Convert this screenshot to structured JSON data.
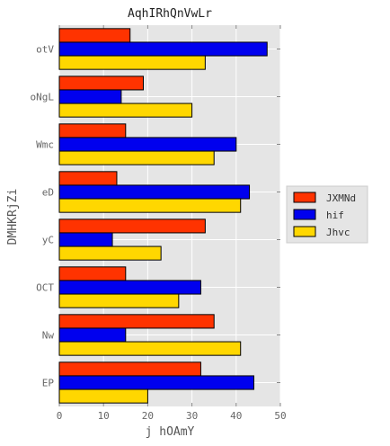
{
  "chart_data": {
    "type": "bar",
    "orientation": "horizontal",
    "title": "AqhIRhQnVwLr",
    "xlabel": "j hOAmY",
    "ylabel": "DMHKRjZi",
    "categories": [
      "otV",
      "oNgL",
      "Wmc",
      "eD",
      "yC",
      "OCT",
      "Nw",
      "EP"
    ],
    "series": [
      {
        "name": "JXMNd",
        "color": "#ff3300",
        "values": [
          16,
          19,
          15,
          13,
          33,
          15,
          35,
          32
        ]
      },
      {
        "name": "hif",
        "color": "#0000ee",
        "values": [
          47,
          14,
          40,
          43,
          12,
          32,
          15,
          44
        ]
      },
      {
        "name": "Jhvc",
        "color": "#ffd700",
        "values": [
          33,
          30,
          35,
          41,
          23,
          27,
          41,
          20
        ]
      }
    ],
    "xlim": [
      0,
      50
    ],
    "xticks": [
      0,
      10,
      20,
      30,
      40,
      50
    ],
    "grid": true,
    "legend_position": "center-right",
    "background": "#e5e5e5"
  }
}
